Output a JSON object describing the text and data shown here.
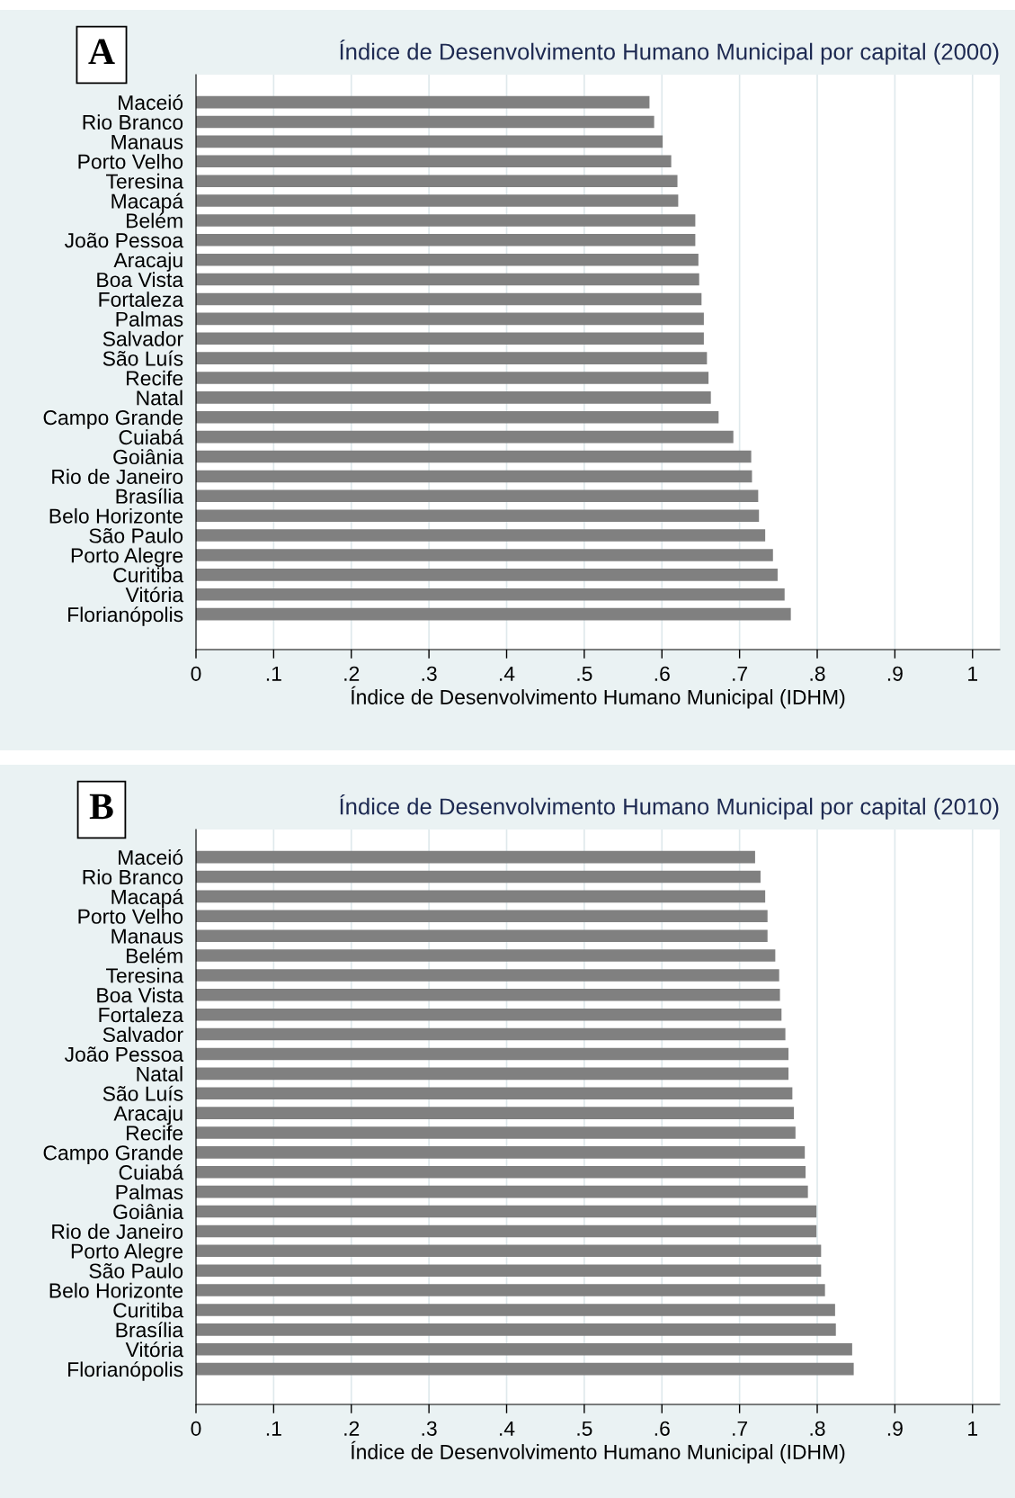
{
  "chart_data": [
    {
      "type": "bar",
      "orientation": "horizontal",
      "title": "Índice de Desenvolvimento Humano Municipal por capital (2000)",
      "xlabel": "Índice de Desenvolvimento Humano Municipal (IDHM)",
      "annotations": [
        "A"
      ],
      "categories": [
        "Maceió",
        "Rio Branco",
        "Manaus",
        "Porto Velho",
        "Teresina",
        "Macapá",
        "Belém",
        "João Pessoa",
        "Aracaju",
        "Boa Vista",
        "Fortaleza",
        "Palmas",
        "Salvador",
        "São Luís",
        "Recife",
        "Natal",
        "Campo Grande",
        "Cuiabá",
        "Goiânia",
        "Rio de Janeiro",
        "Brasília",
        "Belo Horizonte",
        "São Paulo",
        "Porto Alegre",
        "Curitiba",
        "Vitória",
        "Florianópolis"
      ],
      "values": [
        0.584,
        0.59,
        0.601,
        0.612,
        0.62,
        0.621,
        0.643,
        0.643,
        0.647,
        0.648,
        0.651,
        0.654,
        0.654,
        0.658,
        0.66,
        0.663,
        0.673,
        0.692,
        0.715,
        0.716,
        0.724,
        0.725,
        0.733,
        0.743,
        0.749,
        0.758,
        0.766
      ],
      "color": "#808080",
      "xlim": [
        0,
        1.035
      ],
      "xticks": [
        0,
        {
          "value": 0.1,
          "label": ".1"
        },
        {
          "value": 0.2,
          "label": ".2"
        },
        {
          "value": 0.3,
          "label": ".3"
        },
        {
          "value": 0.4,
          "label": ".4"
        },
        {
          "value": 0.5,
          "label": ".5"
        },
        {
          "value": 0.6,
          "label": ".6"
        },
        {
          "value": 0.7,
          "label": ".7"
        },
        {
          "value": 0.8,
          "label": ".8"
        },
        {
          "value": 0.9,
          "label": ".9"
        },
        1
      ],
      "grid": "x"
    },
    {
      "type": "bar",
      "orientation": "horizontal",
      "title": "Índice de Desenvolvimento Humano Municipal por capital (2010)",
      "xlabel": "Índice de Desenvolvimento Humano Municipal (IDHM)",
      "annotations": [
        "B"
      ],
      "categories": [
        "Maceió",
        "Rio Branco",
        "Macapá",
        "Porto Velho",
        "Manaus",
        "Belém",
        "Teresina",
        "Boa Vista",
        "Fortaleza",
        "Salvador",
        "João Pessoa",
        "Natal",
        "São Luís",
        "Aracaju",
        "Recife",
        "Campo Grande",
        "Cuiabá",
        "Palmas",
        "Goiânia",
        "Rio de Janeiro",
        "Porto Alegre",
        "São Paulo",
        "Belo Horizonte",
        "Curitiba",
        "Brasília",
        "Vitória",
        "Florianópolis"
      ],
      "values": [
        0.72,
        0.727,
        0.733,
        0.736,
        0.736,
        0.746,
        0.751,
        0.752,
        0.754,
        0.759,
        0.763,
        0.763,
        0.768,
        0.77,
        0.772,
        0.784,
        0.785,
        0.788,
        0.799,
        0.799,
        0.805,
        0.805,
        0.81,
        0.823,
        0.824,
        0.845,
        0.847
      ],
      "color": "#808080",
      "xlim": [
        0,
        1.035
      ],
      "xticks": [
        0,
        {
          "value": 0.1,
          "label": ".1"
        },
        {
          "value": 0.2,
          "label": ".2"
        },
        {
          "value": 0.3,
          "label": ".3"
        },
        {
          "value": 0.4,
          "label": ".4"
        },
        {
          "value": 0.5,
          "label": ".5"
        },
        {
          "value": 0.6,
          "label": ".6"
        },
        {
          "value": 0.7,
          "label": ".7"
        },
        {
          "value": 0.8,
          "label": ".8"
        },
        {
          "value": 0.9,
          "label": ".9"
        },
        1
      ],
      "grid": "x"
    }
  ]
}
